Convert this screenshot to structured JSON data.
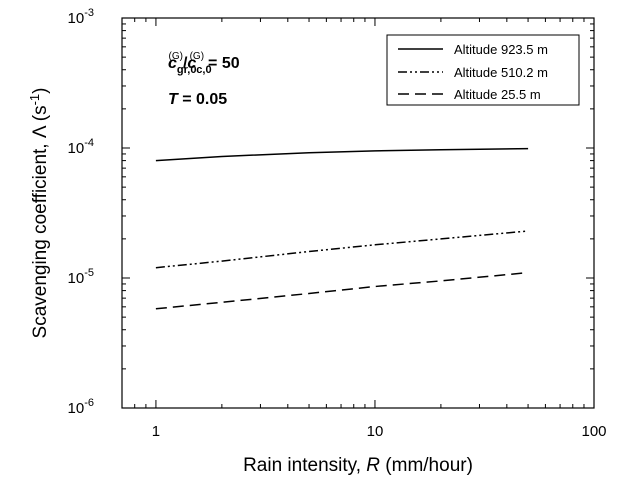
{
  "chart_data": {
    "type": "line",
    "xscale": "log",
    "yscale": "log",
    "xlim": [
      0.7,
      100
    ],
    "ylim": [
      1e-06,
      0.001
    ],
    "xticks": [
      {
        "value": 1,
        "label": "1"
      },
      {
        "value": 10,
        "label": "10"
      },
      {
        "value": 100,
        "label": "100"
      }
    ],
    "yticks": [
      {
        "value": 1e-06,
        "base": "10",
        "exp": "-6"
      },
      {
        "value": 1e-05,
        "base": "10",
        "exp": "-5"
      },
      {
        "value": 0.0001,
        "base": "10",
        "exp": "-4"
      },
      {
        "value": 0.001,
        "base": "10",
        "exp": "-3"
      }
    ],
    "xlabel": {
      "pre": "Rain intensity, ",
      "italic": "R",
      "post": " (mm/hour)"
    },
    "ylabel": {
      "pre": "Scavenging coefficient, Λ (s",
      "sup": "-1",
      "post": ")"
    },
    "grid": false,
    "legend_position": "top-right",
    "series": [
      {
        "name": "Altitude 923.5 m",
        "dash": "solid",
        "x": [
          1,
          2,
          5,
          10,
          20,
          50
        ],
        "y": [
          8e-05,
          8.6e-05,
          9.2e-05,
          9.5e-05,
          9.7e-05,
          9.9e-05
        ]
      },
      {
        "name": "Altitude 510.2 m",
        "dash": "dashdot",
        "x": [
          1,
          2,
          5,
          10,
          20,
          50
        ],
        "y": [
          1.2e-05,
          1.35e-05,
          1.6e-05,
          1.8e-05,
          2e-05,
          2.3e-05
        ]
      },
      {
        "name": "Altitude 25.5 m",
        "dash": "dashed",
        "x": [
          1,
          2,
          5,
          10,
          20,
          50
        ],
        "y": [
          5.8e-06,
          6.5e-06,
          7.6e-06,
          8.6e-06,
          9.5e-06,
          1.1e-05
        ]
      }
    ],
    "annotations": {
      "ratio": {
        "c1": "c",
        "sub1": "gr,0",
        "sup1": "(G)",
        "slash": "/",
        "c2": "c",
        "sub2": "c,0",
        "sup2": "(G)",
        "value": "= 50"
      },
      "t": {
        "var": "T",
        "value": " = 0.05"
      }
    }
  }
}
